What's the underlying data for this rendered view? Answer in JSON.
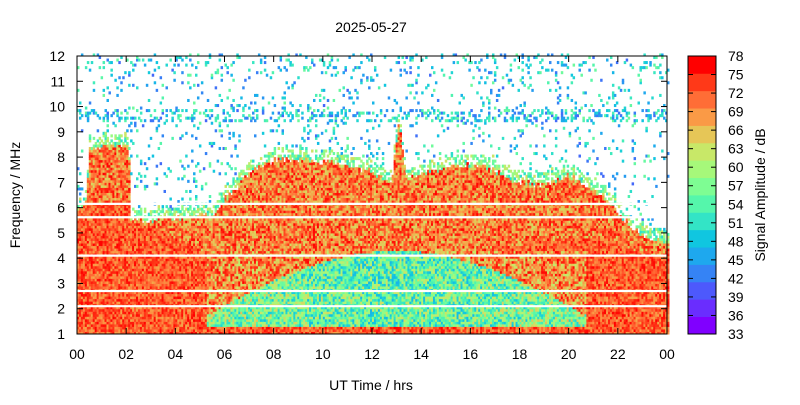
{
  "chart_data": {
    "type": "heatmap",
    "title": "2025-05-27",
    "xlabel": "UT Time / hrs",
    "ylabel": "Frequency / MHz",
    "colorbar_label": "Signal Amplitude / dB",
    "xlim": [
      0,
      24
    ],
    "ylim": [
      1,
      12
    ],
    "x_ticks": [
      "00",
      "02",
      "04",
      "06",
      "08",
      "10",
      "12",
      "14",
      "16",
      "18",
      "20",
      "22",
      "00"
    ],
    "y_ticks": [
      "1",
      "2",
      "3",
      "4",
      "5",
      "6",
      "7",
      "8",
      "9",
      "10",
      "11",
      "12"
    ],
    "colorbar_range": [
      33,
      78
    ],
    "colorbar_ticks": [
      "33",
      "36",
      "39",
      "42",
      "45",
      "48",
      "51",
      "54",
      "57",
      "60",
      "63",
      "66",
      "69",
      "72",
      "75",
      "78"
    ],
    "colorbar_colors": [
      "#8000ff",
      "#6a2dfe",
      "#4d59fc",
      "#3583f5",
      "#1ea8ee",
      "#10c6e0",
      "#33e4c6",
      "#55f6ab",
      "#7efd93",
      "#a6f87a",
      "#c8e868",
      "#e6c657",
      "#fa9a46",
      "#ff6d36",
      "#ff3918",
      "#ff0000"
    ],
    "grid": false,
    "legend": "colorbar-right",
    "cutoff_profile": {
      "description_free": true,
      "hours": [
        0,
        0.4,
        0.5,
        2.1,
        2.2,
        3,
        4,
        5,
        5.3,
        5.6,
        6,
        6.5,
        7,
        8,
        9,
        10,
        11,
        12,
        12.8,
        13.1,
        13.4,
        14,
        15,
        16,
        17,
        17.8,
        19,
        20,
        21,
        21.6,
        22,
        22.5,
        23,
        24
      ],
      "mhz": [
        5.9,
        6.2,
        8.4,
        8.4,
        5.5,
        5.5,
        5.6,
        5.7,
        5.7,
        5.6,
        6.3,
        6.8,
        7.4,
        7.9,
        7.9,
        7.8,
        7.7,
        7.4,
        7.0,
        9.4,
        7.1,
        7.3,
        7.6,
        7.7,
        7.5,
        7.0,
        6.9,
        7.3,
        6.7,
        6.3,
        5.8,
        5.3,
        4.9,
        4.6
      ],
      "strong_floor_mhz": [
        5.9,
        6.2,
        6.2,
        6.2,
        5.3,
        5.3,
        4.8,
        4.4,
        4.2,
        4.1,
        4.0,
        3.9,
        3.8,
        3.7,
        3.6,
        3.6,
        3.6,
        3.6,
        3.7,
        3.8,
        3.8,
        3.9,
        4.0,
        4.2,
        4.4,
        4.5,
        4.7,
        4.8,
        4.8,
        4.7,
        4.6,
        4.4,
        4.2,
        4.0
      ]
    },
    "white_gap_lines_mhz": [
      2.1,
      2.7,
      4.1,
      5.62,
      6.15
    ]
  }
}
